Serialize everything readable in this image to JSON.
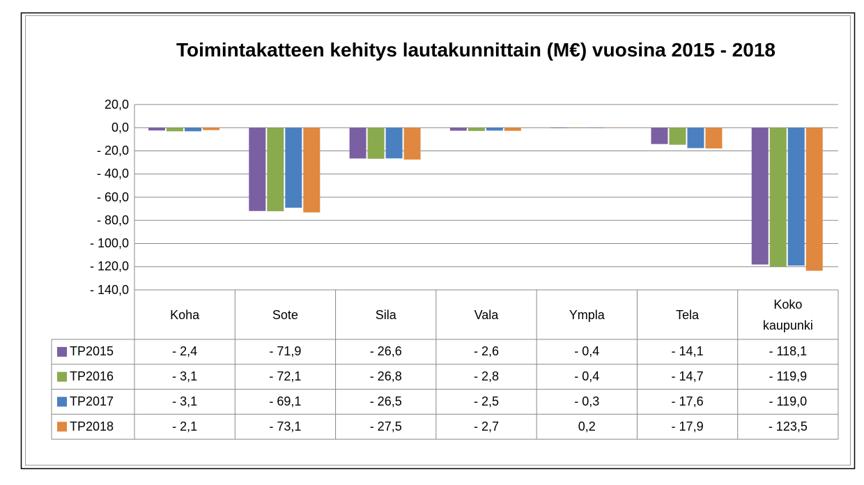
{
  "chart_data": {
    "type": "bar",
    "title": "Toimintakatteen kehitys lautakunnittain (M€) vuosina 2015 - 2018",
    "categories": [
      "Koha",
      "Sote",
      "Sila",
      "Vala",
      "Ympla",
      "Tela",
      "Koko kaupunki"
    ],
    "series": [
      {
        "name": "TP2015",
        "color": "#7b5fa3",
        "values": [
          -2.4,
          -71.9,
          -26.6,
          -2.6,
          -0.4,
          -14.1,
          -118.1
        ],
        "value_labels": [
          "- 2,4",
          "- 71,9",
          "- 26,6",
          "- 2,6",
          "- 0,4",
          "- 14,1",
          "- 118,1"
        ]
      },
      {
        "name": "TP2016",
        "color": "#8aaa4e",
        "values": [
          -3.1,
          -72.1,
          -26.8,
          -2.8,
          -0.4,
          -14.7,
          -119.9
        ],
        "value_labels": [
          "- 3,1",
          "- 72,1",
          "- 26,8",
          "- 2,8",
          "- 0,4",
          "- 14,7",
          "- 119,9"
        ]
      },
      {
        "name": "TP2017",
        "color": "#4a80c0",
        "values": [
          -3.1,
          -69.1,
          -26.5,
          -2.5,
          -0.3,
          -17.6,
          -119.0
        ],
        "value_labels": [
          "- 3,1",
          "- 69,1",
          "- 26,5",
          "- 2,5",
          "- 0,3",
          "- 17,6",
          "- 119,0"
        ]
      },
      {
        "name": "TP2018",
        "color": "#e0883f",
        "values": [
          -2.1,
          -73.1,
          -27.5,
          -2.7,
          0.2,
          -17.9,
          -123.5
        ],
        "value_labels": [
          "- 2,1",
          "- 73,1",
          "- 27,5",
          "- 2,7",
          "0,2",
          "- 17,9",
          "- 123,5"
        ]
      }
    ],
    "ylim": [
      -140,
      20
    ],
    "yticks": [
      {
        "value": 20,
        "label": "20,0"
      },
      {
        "value": 0,
        "label": "0,0"
      },
      {
        "value": -20,
        "label": "- 20,0"
      },
      {
        "value": -40,
        "label": "- 40,0"
      },
      {
        "value": -60,
        "label": "- 60,0"
      },
      {
        "value": -80,
        "label": "- 80,0"
      },
      {
        "value": -100,
        "label": "- 100,0"
      },
      {
        "value": -120,
        "label": "- 120,0"
      },
      {
        "value": -140,
        "label": "- 140,0"
      }
    ],
    "grid": true,
    "legend": "table"
  }
}
